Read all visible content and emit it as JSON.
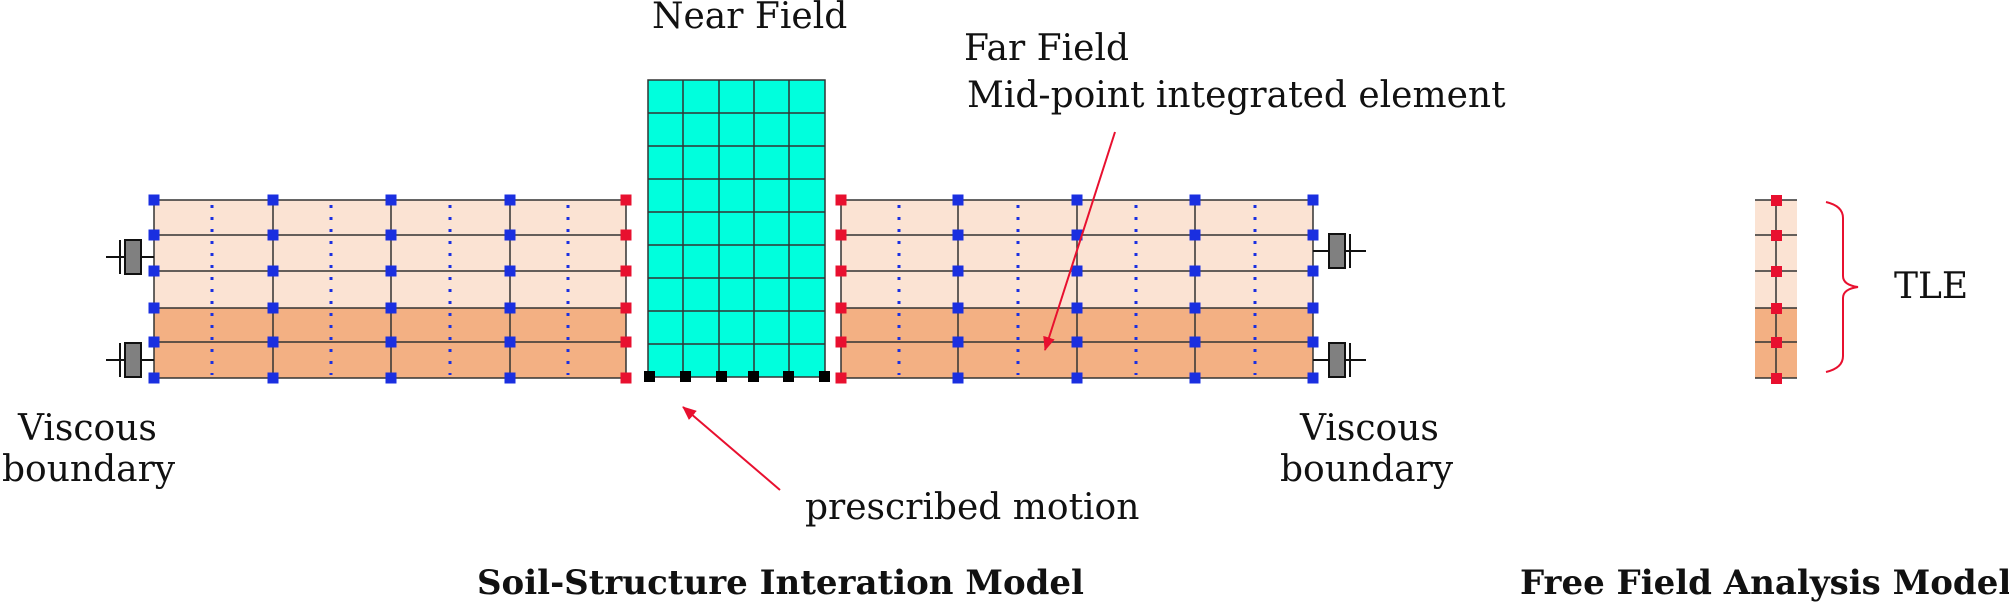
{
  "labels": {
    "near_field": "Near Field",
    "far_field": "Far Field",
    "mid_point": "Mid-point integrated element",
    "viscous_left_1": "Viscous",
    "viscous_left_2": "boundary",
    "viscous_right_1": "Viscous",
    "viscous_right_2": "boundary",
    "prescribed_motion": "prescribed motion",
    "tle": "TLE",
    "ssi_title": "Soil-Structure Interation Model",
    "free_field_title": "Free Field Analysis Model"
  },
  "colors": {
    "near_field_fill": "#00FFDD",
    "upper_soil": "#FBE3D3",
    "lower_soil": "#F3B083",
    "blue_node": "#1A2FE0",
    "red_node": "#E8102F",
    "black_node": "#000000",
    "dashpot": "#808080",
    "arrow": "#E8102F",
    "line": "#333333"
  }
}
